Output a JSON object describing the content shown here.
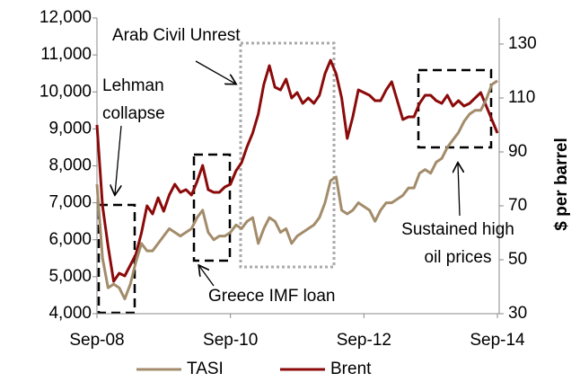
{
  "chart_data": {
    "type": "line",
    "categories": [
      "Sep-08",
      null,
      null,
      null,
      null,
      null,
      null,
      null,
      null,
      null,
      null,
      null,
      null,
      null,
      null,
      null,
      null,
      null,
      null,
      null,
      null,
      null,
      null,
      null,
      "Sep-10",
      null,
      null,
      null,
      null,
      null,
      null,
      null,
      null,
      null,
      null,
      null,
      null,
      null,
      null,
      null,
      null,
      null,
      null,
      null,
      null,
      null,
      null,
      null,
      "Sep-12",
      null,
      null,
      null,
      null,
      null,
      null,
      null,
      null,
      null,
      null,
      null,
      null,
      null,
      null,
      null,
      null,
      null,
      null,
      null,
      null,
      null,
      null,
      null,
      "Sep-14"
    ],
    "series": [
      {
        "name": "TASI",
        "color": "#a38c6b",
        "axis": "y",
        "values": [
          7500,
          5500,
          4700,
          4800,
          4700,
          4400,
          4800,
          5400,
          5900,
          5700,
          5700,
          5900,
          6100,
          6300,
          6200,
          6100,
          6200,
          6300,
          6600,
          6800,
          6200,
          6000,
          6100,
          6100,
          6200,
          6400,
          6300,
          6500,
          6600,
          5900,
          6300,
          6600,
          6500,
          6200,
          6300,
          5900,
          6100,
          6200,
          6300,
          6400,
          6600,
          7000,
          7600,
          7700,
          6800,
          6700,
          6800,
          7000,
          6900,
          6800,
          6500,
          6800,
          7000,
          7000,
          7100,
          7200,
          7400,
          7400,
          7800,
          7900,
          7800,
          8100,
          8200,
          8500,
          8700,
          8900,
          9200,
          9400,
          9500,
          9500,
          9800,
          10200,
          10300
        ]
      },
      {
        "name": "Brent",
        "color": "#8b0a0a",
        "axis": "y2",
        "values": [
          100,
          70,
          55,
          42,
          45,
          44,
          48,
          52,
          60,
          70,
          67,
          73,
          68,
          74,
          78,
          75,
          76,
          74,
          79,
          85,
          76,
          75,
          75,
          77,
          78,
          83,
          86,
          92,
          97,
          104,
          115,
          122,
          114,
          113,
          117,
          110,
          112,
          108,
          110,
          108,
          111,
          119,
          124,
          119,
          110,
          95,
          103,
          113,
          112,
          111,
          109,
          109,
          113,
          116,
          109,
          102,
          103,
          103,
          108,
          111,
          111,
          109,
          108,
          111,
          107,
          109,
          107,
          108,
          110,
          112,
          107,
          102,
          97
        ]
      }
    ],
    "ylim": [
      4000,
      12000
    ],
    "yticks": [
      {
        "value": 4000,
        "label": "4,000"
      },
      {
        "value": 5000,
        "label": "5,000"
      },
      {
        "value": 6000,
        "label": "6,000"
      },
      {
        "value": 7000,
        "label": "7,000"
      },
      {
        "value": 8000,
        "label": "8,000"
      },
      {
        "value": 9000,
        "label": "9,000"
      },
      {
        "value": 10000,
        "label": "10,000"
      },
      {
        "value": 11000,
        "label": "11,000"
      },
      {
        "value": 12000,
        "label": "12,000"
      }
    ],
    "y2lim": [
      30,
      139.67
    ],
    "y2ticks": [
      30,
      50,
      70,
      90,
      110,
      130
    ],
    "y2label": "$ per barrel",
    "legend": "bottom",
    "annotations": [
      {
        "lines": [
          "Arab Civil Unrest"
        ]
      },
      {
        "lines": [
          "Lehman",
          "collapse"
        ]
      },
      {
        "lines": [
          "Greece IMF loan"
        ]
      },
      {
        "lines": [
          "Sustained high",
          "oil prices"
        ]
      }
    ]
  }
}
